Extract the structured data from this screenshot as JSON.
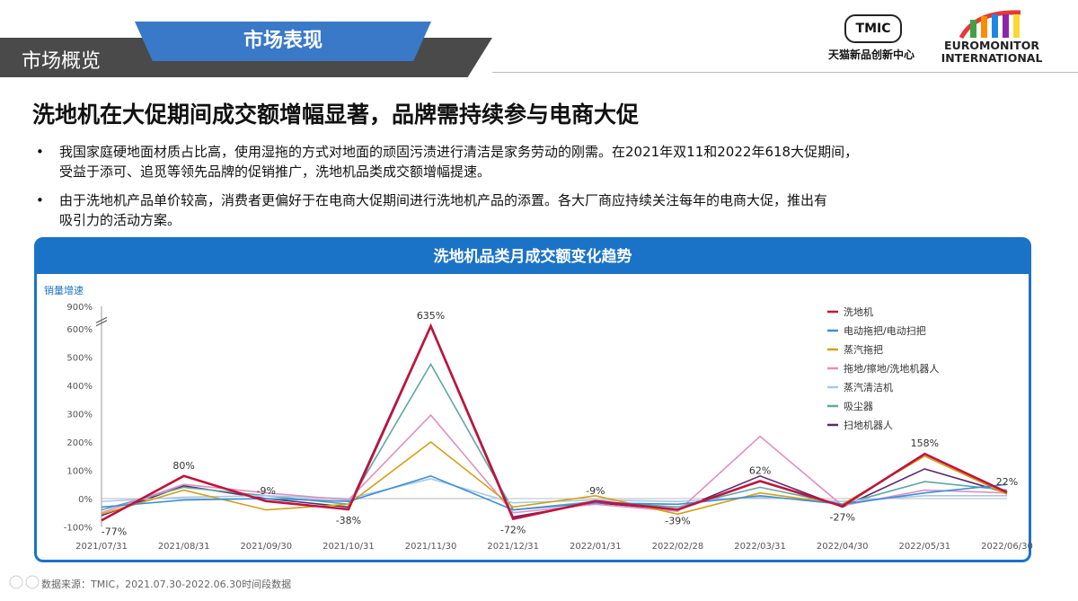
{
  "header": {
    "section": "市场概览",
    "tab": "市场表现"
  },
  "logos": {
    "tmic": {
      "mark": "TMIC",
      "caption": "天猫新品创新中心"
    },
    "euromonitor": {
      "line1": "EUROMONITOR",
      "line2": "INTERNATIONAL"
    }
  },
  "page_title": "洗地机在大促期间成交额增幅显著，品牌需持续参与电商大促",
  "bullets": [
    {
      "dot": "•",
      "line1": "我国家庭硬地面材质占比高，使用湿拖的方式对地面的顽固污渍进行清洁是家务劳动的刚需。在2021年双11和2022年618大促期间，",
      "line2": "受益于添可、追觅等领先品牌的促销推广，洗地机品类成交额增幅提速。"
    },
    {
      "dot": "•",
      "line1": "由于洗地机产品单价较高，消费者更偏好于在电商大促期间进行洗地机产品的添置。各大厂商应持续关注每年的电商大促，推出有",
      "line2": "吸引力的活动方案。"
    }
  ],
  "source": "数据来源：TMIC，2021.07.30-2022.06.30时间段数据",
  "chart_data": {
    "type": "line",
    "title": "洗地机品类月成交额变化趋势",
    "ylabel": "销量增速",
    "ylim": [
      -100,
      900
    ],
    "y_ticks": [
      -100,
      0,
      100,
      200,
      300,
      400,
      500,
      600,
      900
    ],
    "y_tick_labels": [
      "-100%",
      "0%",
      "100%",
      "200%",
      "300%",
      "400%",
      "500%",
      "600%",
      "900%"
    ],
    "axis_break": "600%-900%",
    "grid": false,
    "legend": "top-right",
    "categories": [
      "2021/07/31",
      "2021/08/31",
      "2021/09/30",
      "2021/10/31",
      "2021/11/30",
      "2021/12/31",
      "2022/01/31",
      "2022/02/28",
      "2022/03/31",
      "2022/04/30",
      "2022/05/31",
      "2022/06/30"
    ],
    "series": [
      {
        "name": "洗地机",
        "color": "#c0143c",
        "values": [
          -77,
          80,
          -9,
          -38,
          635,
          -72,
          -9,
          -39,
          62,
          -27,
          158,
          22
        ]
      },
      {
        "name": "电动拖把/电动扫把",
        "color": "#3c8fd6",
        "values": [
          -30,
          -5,
          0,
          -10,
          80,
          -40,
          -15,
          -20,
          10,
          -20,
          20,
          50
        ]
      },
      {
        "name": "蒸汽拖把",
        "color": "#d4a017",
        "values": [
          -55,
          30,
          -40,
          -20,
          200,
          -30,
          10,
          -55,
          20,
          -20,
          150,
          15
        ]
      },
      {
        "name": "拖地/擦地/洗地机器人",
        "color": "#e08fc0",
        "values": [
          -50,
          50,
          20,
          -5,
          295,
          -50,
          -20,
          -45,
          220,
          -25,
          30,
          20
        ]
      },
      {
        "name": "蒸汽清洁机",
        "color": "#a9c9ea",
        "values": [
          -10,
          5,
          10,
          0,
          70,
          -15,
          -5,
          -10,
          5,
          -10,
          10,
          10
        ]
      },
      {
        "name": "吸尘器",
        "color": "#5fa8a0",
        "values": [
          -40,
          40,
          10,
          -20,
          475,
          -40,
          -10,
          -30,
          40,
          -20,
          60,
          30
        ]
      },
      {
        "name": "扫地机器人",
        "color": "#5a2a6e",
        "values": [
          -60,
          45,
          0,
          -30,
          650,
          -65,
          -15,
          -40,
          80,
          -30,
          105,
          20
        ]
      }
    ],
    "annotations": [
      {
        "series": 0,
        "index": 0,
        "text": "-77%"
      },
      {
        "series": 0,
        "index": 1,
        "text": "80%"
      },
      {
        "series": 0,
        "index": 2,
        "text": "-9%"
      },
      {
        "series": 0,
        "index": 3,
        "text": "-38%"
      },
      {
        "series": 0,
        "index": 4,
        "text": "635%"
      },
      {
        "series": 0,
        "index": 5,
        "text": "-72%"
      },
      {
        "series": 0,
        "index": 6,
        "text": "-9%"
      },
      {
        "series": 0,
        "index": 7,
        "text": "-39%"
      },
      {
        "series": 0,
        "index": 8,
        "text": "62%"
      },
      {
        "series": 0,
        "index": 9,
        "text": "-27%"
      },
      {
        "series": 0,
        "index": 10,
        "text": "158%"
      },
      {
        "series": 0,
        "index": 11,
        "text": "22%"
      }
    ]
  }
}
